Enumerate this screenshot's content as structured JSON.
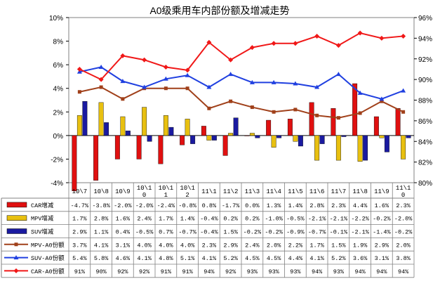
{
  "chart_data": {
    "type": "bar",
    "title": "A0级乘用车内部份额及增减走势",
    "categories": [
      "10\\7",
      "10\\8",
      "10\\9",
      "10\\10",
      "10\\11",
      "10\\12",
      "11\\1",
      "11\\2",
      "11\\3",
      "11\\4",
      "11\\5",
      "11\\6",
      "11\\7",
      "11\\8",
      "11\\9",
      "11\\10"
    ],
    "ylim_left": [
      -4,
      10
    ],
    "ylim_right": [
      80,
      96
    ],
    "left_ticks": [
      "10%",
      "8%",
      "6%",
      "4%",
      "2%",
      "0%",
      "-2%",
      "-4%"
    ],
    "right_ticks": [
      "96%",
      "94%",
      "92%",
      "90%",
      "88%",
      "86%",
      "84%",
      "82%",
      "80%"
    ],
    "grid": false,
    "legend": "table-below",
    "series": [
      {
        "name": "CAR增减",
        "kind": "bar",
        "axis": "left",
        "color": "#e01010",
        "values": [
          -4.7,
          -3.8,
          -2.0,
          -2.0,
          -2.4,
          -0.8,
          0.8,
          -1.7,
          0.0,
          1.3,
          1.4,
          2.8,
          2.3,
          4.4,
          1.6,
          2.3
        ],
        "labels": [
          "-4.7%",
          "-3.8%",
          "-2.0%",
          "-2.0%",
          "-2.4%",
          "-0.8%",
          "0.8%",
          "-1.7%",
          "0.0%",
          "1.3%",
          "1.4%",
          "2.8%",
          "2.3%",
          "4.4%",
          "1.6%",
          "2.3%"
        ]
      },
      {
        "name": "MPV增减",
        "kind": "bar",
        "axis": "left",
        "color": "#e8c010",
        "values": [
          1.7,
          2.8,
          1.6,
          2.4,
          1.7,
          1.4,
          -0.4,
          0.2,
          0.2,
          -1.0,
          -0.5,
          -2.1,
          -2.1,
          -2.2,
          -0.2,
          -2.0
        ],
        "labels": [
          "1.7%",
          "2.8%",
          "1.6%",
          "2.4%",
          "1.7%",
          "1.4%",
          "-0.4%",
          "0.2%",
          "0.2%",
          "-1.0%",
          "-0.5%",
          "-2.1%",
          "-2.1%",
          "-2.2%",
          "-0.2%",
          "-2.0%"
        ]
      },
      {
        "name": "SUV增减",
        "kind": "bar",
        "axis": "left",
        "color": "#1a1aa0",
        "values": [
          2.9,
          1.1,
          0.4,
          -0.5,
          0.7,
          -0.7,
          -0.4,
          1.5,
          -0.2,
          -0.2,
          -0.9,
          -0.7,
          -0.1,
          -2.1,
          -1.4,
          -0.2
        ],
        "labels": [
          "2.9%",
          "1.1%",
          "0.4%",
          "-0.5%",
          "0.7%",
          "-0.7%",
          "-0.4%",
          "1.5%",
          "-0.2%",
          "-0.2%",
          "-0.9%",
          "-0.7%",
          "-0.1%",
          "-2.1%",
          "-1.4%",
          "-0.2%"
        ]
      },
      {
        "name": "MPV-A0份额",
        "kind": "line",
        "axis": "left",
        "color": "#a0401a",
        "marker": "square",
        "values": [
          3.7,
          4.1,
          3.1,
          4.0,
          4.0,
          4.0,
          2.3,
          2.9,
          2.4,
          2.0,
          2.2,
          1.7,
          1.5,
          1.9,
          2.9,
          2.0
        ],
        "labels": [
          "3.7%",
          "4.1%",
          "3.1%",
          "4.0%",
          "4.0%",
          "4.0%",
          "2.3%",
          "2.9%",
          "2.4%",
          "2.0%",
          "2.2%",
          "1.7%",
          "1.5%",
          "1.9%",
          "2.9%",
          "2.0%"
        ]
      },
      {
        "name": "SUV-A0份额",
        "kind": "line",
        "axis": "left",
        "color": "#2040e0",
        "marker": "triangle",
        "values": [
          5.4,
          5.8,
          4.6,
          4.1,
          4.8,
          5.1,
          4.1,
          5.2,
          4.5,
          4.5,
          4.4,
          4.1,
          5.2,
          3.6,
          3.1,
          3.8
        ],
        "labels": [
          "5.4%",
          "5.8%",
          "4.6%",
          "4.1%",
          "4.8%",
          "5.1%",
          "4.1%",
          "5.2%",
          "4.5%",
          "4.5%",
          "4.4%",
          "4.1%",
          "5.2%",
          "3.6%",
          "3.1%",
          "3.8%"
        ]
      },
      {
        "name": "CAR-A0份额",
        "kind": "line",
        "axis": "right",
        "color": "#f01818",
        "marker": "diamond",
        "values": [
          91,
          90,
          92.3,
          91.9,
          91.2,
          90.9,
          93.6,
          91.9,
          93.1,
          93.5,
          93.5,
          94.2,
          93.3,
          94.5,
          94,
          94.2
        ],
        "labels": [
          "91%",
          "90%",
          "92%",
          "92%",
          "91%",
          "91%",
          "94%",
          "92%",
          "93%",
          "93%",
          "93%",
          "94%",
          "93%",
          "94%",
          "94%",
          "94%"
        ]
      }
    ]
  }
}
